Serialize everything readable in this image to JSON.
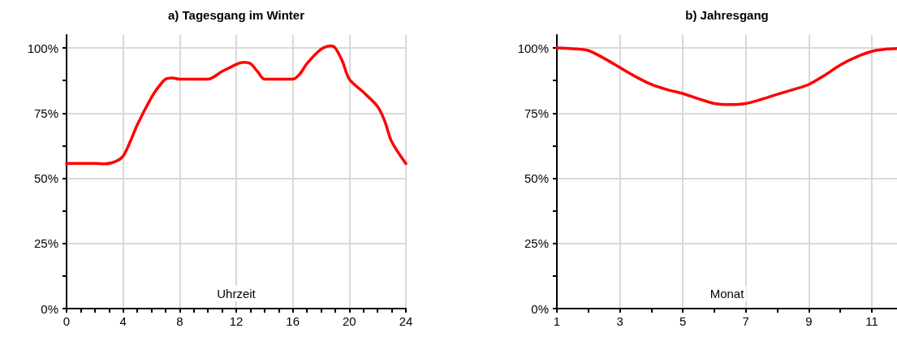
{
  "chart_data": [
    {
      "type": "line",
      "title": "a) Tagesgang im Winter",
      "xlabel": "Uhrzeit",
      "x": [
        0,
        1,
        2,
        2.7,
        3.5,
        4,
        4.5,
        5,
        6,
        6.5,
        7,
        7.5,
        8,
        9,
        10,
        11,
        12,
        12.5,
        13,
        13.5,
        14,
        15,
        16,
        16.5,
        17,
        18,
        18.7,
        19,
        19.5,
        20,
        21,
        22,
        22.5,
        23,
        24
      ],
      "series": [
        {
          "color": "#ff0000",
          "values": [
            55.7,
            55.7,
            55.7,
            55.5,
            56.5,
            58.5,
            64,
            70.5,
            81,
            85,
            88,
            88.5,
            88,
            88,
            88,
            91,
            93.7,
            94.5,
            94,
            91,
            88,
            88,
            88,
            90,
            94,
            99.5,
            100.8,
            100,
            95,
            88,
            83,
            77.5,
            72,
            64,
            55.6
          ]
        }
      ],
      "xlim": [
        0,
        24
      ],
      "xticks": [
        0,
        {
          "value": 1,
          "label": null
        },
        {
          "value": 2,
          "label": null
        },
        {
          "value": 3,
          "label": null
        },
        4,
        {
          "value": 5,
          "label": null
        },
        {
          "value": 6,
          "label": null
        },
        {
          "value": 7,
          "label": null
        },
        8,
        {
          "value": 9,
          "label": null
        },
        {
          "value": 10,
          "label": null
        },
        {
          "value": 11,
          "label": null
        },
        12,
        {
          "value": 13,
          "label": null
        },
        {
          "value": 14,
          "label": null
        },
        {
          "value": 15,
          "label": null
        },
        16,
        {
          "value": 17,
          "label": null
        },
        {
          "value": 18,
          "label": null
        },
        {
          "value": 19,
          "label": null
        },
        20,
        {
          "value": 21,
          "label": null
        },
        {
          "value": 22,
          "label": null
        },
        {
          "value": 23,
          "label": null
        },
        24
      ],
      "ylim": [
        0,
        105
      ],
      "yticks": [
        {
          "value": 0,
          "label": "0%"
        },
        {
          "value": 12.5,
          "label": null
        },
        {
          "value": 25,
          "label": "25%"
        },
        {
          "value": 37.5,
          "label": null
        },
        {
          "value": 50,
          "label": "50%"
        },
        {
          "value": 62.5,
          "label": null
        },
        {
          "value": 75,
          "label": "75%"
        },
        {
          "value": 87.5,
          "label": null
        },
        {
          "value": 100,
          "label": "100%"
        }
      ],
      "grid": true,
      "marker": "none",
      "line_style": "solid"
    },
    {
      "type": "line",
      "title": "b) Jahresgang",
      "xlabel": "Monat",
      "x": [
        1,
        1.5,
        2,
        2.5,
        3,
        3.5,
        4,
        4.5,
        5,
        5.5,
        6,
        6.5,
        7,
        7.5,
        8,
        8.5,
        9,
        9.5,
        10,
        10.5,
        11,
        11.5,
        11.8
      ],
      "series": [
        {
          "color": "#ff0000",
          "values": [
            100,
            99.7,
            99,
            96,
            92.5,
            89,
            86,
            84,
            82.5,
            80.5,
            78.7,
            78.3,
            78.7,
            80.3,
            82.2,
            84,
            86,
            89.5,
            93.5,
            96.5,
            98.7,
            99.6,
            99.8
          ]
        }
      ],
      "xlim": [
        1,
        11.8
      ],
      "xticks": [
        1,
        {
          "value": 2,
          "label": null
        },
        3,
        {
          "value": 4,
          "label": null
        },
        5,
        {
          "value": 6,
          "label": null
        },
        7,
        {
          "value": 8,
          "label": null
        },
        9,
        {
          "value": 10,
          "label": null
        },
        11
      ],
      "ylim": [
        0,
        105
      ],
      "yticks": [
        {
          "value": 0,
          "label": "0%"
        },
        {
          "value": 12.5,
          "label": null
        },
        {
          "value": 25,
          "label": "25%"
        },
        {
          "value": 37.5,
          "label": null
        },
        {
          "value": 50,
          "label": "50%"
        },
        {
          "value": 62.5,
          "label": null
        },
        {
          "value": 75,
          "label": "75%"
        },
        {
          "value": 87.5,
          "label": null
        },
        {
          "value": 100,
          "label": "100%"
        }
      ],
      "grid": true,
      "marker": "none",
      "line_style": "solid"
    }
  ]
}
